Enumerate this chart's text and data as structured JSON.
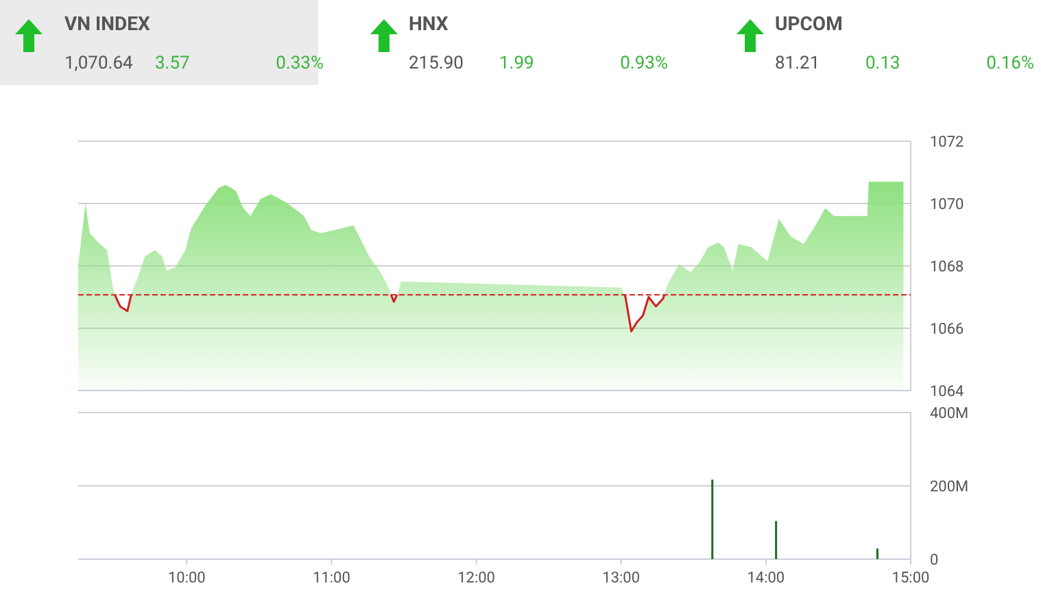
{
  "chart_data": [
    {
      "type": "other",
      "annotations": [
        "VN INDEX",
        "1,070.64",
        "3.57",
        "0.33%",
        "HNX",
        "215.90",
        "1.99",
        "0.93%",
        "UPCOM",
        "81.21",
        "0.13",
        "0.16%"
      ]
    },
    {
      "type": "area",
      "xlim": [
        9.25,
        15
      ],
      "ylim": [
        1064,
        1072
      ],
      "yticks": [
        1064,
        1066,
        1068,
        1070,
        1072
      ],
      "grid": "y",
      "tick_labels": "y",
      "ref_lines": [
        {
          "axis": "y",
          "value": 1067.07,
          "color": "#d42020",
          "line_style": "dashed"
        }
      ],
      "series": [
        {
          "color": "#8ee07f",
          "x": [
            9.25,
            9.3,
            9.33,
            9.39,
            9.45,
            9.49,
            9.51,
            9.54,
            9.59,
            9.62,
            9.66,
            9.71,
            9.78,
            9.83,
            9.86,
            9.92,
            9.99,
            10.03,
            10.13,
            10.22,
            10.27,
            10.34,
            10.39,
            10.44,
            10.51,
            10.58,
            10.68,
            10.74,
            10.81,
            10.86,
            10.93,
            11.02,
            11.15,
            11.18,
            11.26,
            11.33,
            11.38,
            11.43,
            11.46,
            11.48,
            13.0,
            13.03,
            13.07,
            13.11,
            13.15,
            13.19,
            13.24,
            13.29,
            13.32,
            13.4,
            13.48,
            13.54,
            13.6,
            13.67,
            13.71,
            13.77,
            13.81,
            13.9,
            14.01,
            14.09,
            14.17,
            14.26,
            14.33,
            14.41,
            14.47,
            14.7,
            14.71,
            14.95
          ],
          "values": [
            1068.0,
            1070.0,
            1069.05,
            1068.75,
            1068.5,
            1067.3,
            1067.0,
            1066.7,
            1066.55,
            1067.15,
            1067.6,
            1068.3,
            1068.5,
            1068.3,
            1067.85,
            1067.95,
            1068.5,
            1069.2,
            1069.95,
            1070.5,
            1070.6,
            1070.4,
            1069.85,
            1069.6,
            1070.15,
            1070.3,
            1070.05,
            1069.85,
            1069.6,
            1069.15,
            1069.05,
            1069.15,
            1069.3,
            1069.05,
            1068.3,
            1067.85,
            1067.45,
            1066.85,
            1067.15,
            1067.5,
            1067.3,
            1067.0,
            1065.9,
            1066.2,
            1066.4,
            1067.0,
            1066.7,
            1066.95,
            1067.4,
            1068.05,
            1067.8,
            1068.1,
            1068.6,
            1068.75,
            1068.6,
            1067.85,
            1068.7,
            1068.6,
            1068.15,
            1069.5,
            1068.95,
            1068.7,
            1069.2,
            1069.85,
            1069.6,
            1069.6,
            1070.7,
            1070.7
          ]
        }
      ]
    },
    {
      "type": "bar",
      "x": [
        13.63,
        14.07,
        14.77
      ],
      "values": [
        217,
        104,
        29
      ],
      "color": "#1e6b1e",
      "xlim": [
        9.25,
        15
      ],
      "xticks": [
        {
          "value": 10,
          "label": "10:00"
        },
        {
          "value": 11,
          "label": "11:00"
        },
        {
          "value": 12,
          "label": "12:00"
        },
        {
          "value": 13,
          "label": "13:00"
        },
        {
          "value": 14,
          "label": "14:00"
        },
        {
          "value": 15,
          "label": "15:00"
        }
      ],
      "ylim": [
        0,
        400
      ],
      "yticks": [
        {
          "value": 0,
          "label": "0"
        },
        {
          "value": 200,
          "label": "200M"
        },
        {
          "value": 400,
          "label": "400M"
        }
      ],
      "grid": "y"
    }
  ]
}
